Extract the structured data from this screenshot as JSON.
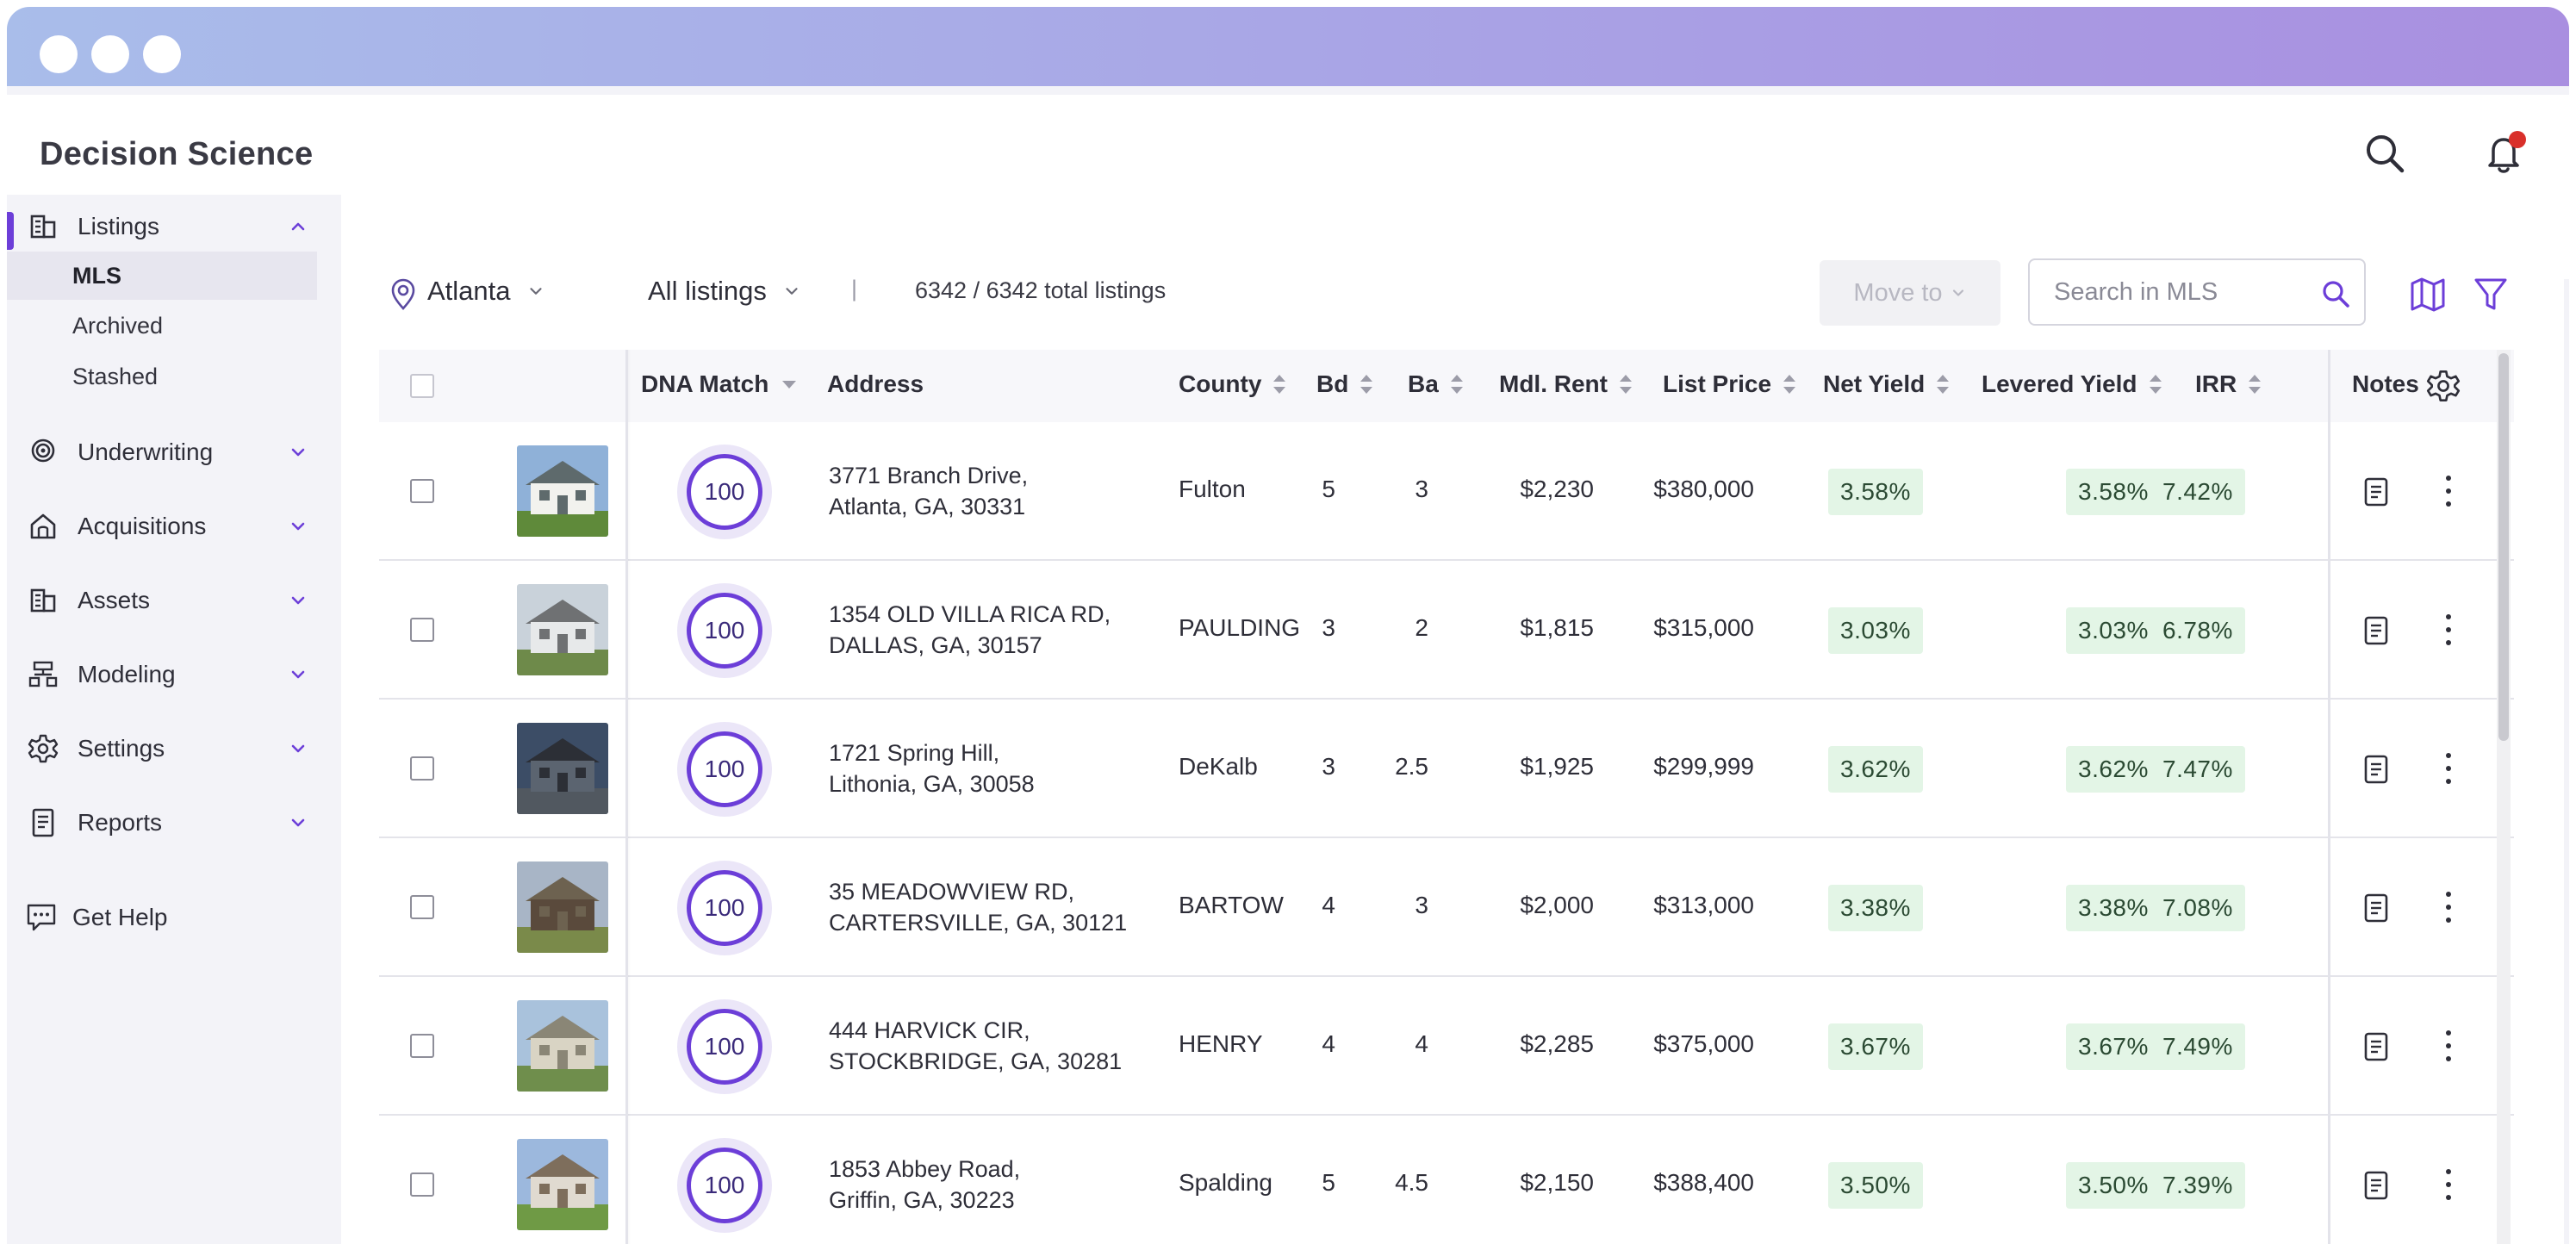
{
  "app": {
    "title": "Decision Science"
  },
  "colors": {
    "accent": "#6c3ed8",
    "notification": "#d9302b",
    "yield_bg": "#e3f5e6"
  },
  "sidebar": {
    "items": [
      {
        "label": "Listings",
        "icon": "building-icon",
        "expanded": true,
        "children": [
          {
            "label": "MLS"
          },
          {
            "label": "Archived"
          },
          {
            "label": "Stashed"
          }
        ]
      },
      {
        "label": "Underwriting",
        "icon": "target-icon"
      },
      {
        "label": "Acquisitions",
        "icon": "house-icon"
      },
      {
        "label": "Assets",
        "icon": "building-icon"
      },
      {
        "label": "Modeling",
        "icon": "hierarchy-icon"
      },
      {
        "label": "Settings",
        "icon": "gear-icon"
      },
      {
        "label": "Reports",
        "icon": "document-icon"
      }
    ],
    "help": {
      "label": "Get Help",
      "icon": "chat-help-icon"
    }
  },
  "toolbar": {
    "location": "Atlanta",
    "listing_filter": "All listings",
    "separator": "|",
    "count": "6342 / 6342 total listings",
    "move_to": "Move to",
    "search_placeholder": "Search in MLS"
  },
  "table": {
    "headers": {
      "dna": "DNA Match",
      "address": "Address",
      "county": "County",
      "bd": "Bd",
      "ba": "Ba",
      "rent": "Mdl. Rent",
      "price": "List Price",
      "net": "Net Yield",
      "levered": "Levered Yield",
      "irr": "IRR",
      "notes": "Notes"
    },
    "rows": [
      {
        "dna": "100",
        "addr1": "3771 Branch Drive,",
        "addr2": "Atlanta, GA, 30331",
        "county": "Fulton",
        "bd": "5",
        "ba": "3",
        "rent": "$2,230",
        "price": "$380,000",
        "net": "3.58%",
        "levered": "3.58%",
        "irr": "7.42%"
      },
      {
        "dna": "100",
        "addr1": "1354 OLD VILLA RICA RD,",
        "addr2": "DALLAS, GA, 30157",
        "county": "PAULDING",
        "bd": "3",
        "ba": "2",
        "rent": "$1,815",
        "price": "$315,000",
        "net": "3.03%",
        "levered": "3.03%",
        "irr": "6.78%"
      },
      {
        "dna": "100",
        "addr1": "1721 Spring Hill,",
        "addr2": "Lithonia, GA, 30058",
        "county": "DeKalb",
        "bd": "3",
        "ba": "2.5",
        "rent": "$1,925",
        "price": "$299,999",
        "net": "3.62%",
        "levered": "3.62%",
        "irr": "7.47%"
      },
      {
        "dna": "100",
        "addr1": "35 MEADOWVIEW RD,",
        "addr2": "CARTERSVILLE, GA, 30121",
        "county": "BARTOW",
        "bd": "4",
        "ba": "3",
        "rent": "$2,000",
        "price": "$313,000",
        "net": "3.38%",
        "levered": "3.38%",
        "irr": "7.08%"
      },
      {
        "dna": "100",
        "addr1": "444 HARVICK CIR,",
        "addr2": "STOCKBRIDGE, GA, 30281",
        "county": "HENRY",
        "bd": "4",
        "ba": "4",
        "rent": "$2,285",
        "price": "$375,000",
        "net": "3.67%",
        "levered": "3.67%",
        "irr": "7.49%"
      },
      {
        "dna": "100",
        "addr1": "1853 Abbey Road,",
        "addr2": "Griffin, GA, 30223",
        "county": "Spalding",
        "bd": "5",
        "ba": "4.5",
        "rent": "$2,150",
        "price": "$388,400",
        "net": "3.50%",
        "levered": "3.50%",
        "irr": "7.39%"
      }
    ]
  }
}
